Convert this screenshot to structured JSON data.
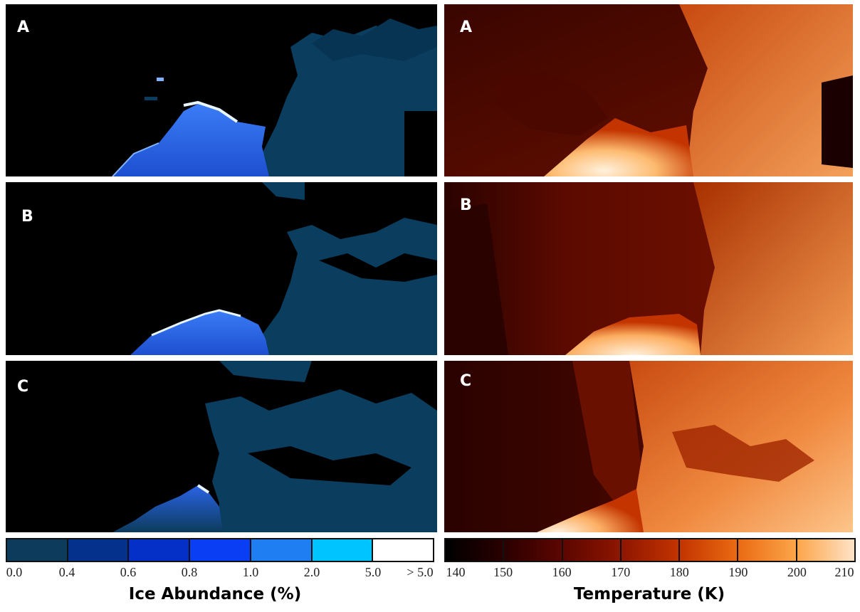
{
  "ice_panels": [
    {
      "label": "A"
    },
    {
      "label": "B"
    },
    {
      "label": "C"
    }
  ],
  "temp_panels": [
    {
      "label": "A"
    },
    {
      "label": "B"
    },
    {
      "label": "C"
    }
  ],
  "ice_colorbar": {
    "title": "Ice Abundance (%)",
    "ticks": [
      "0.0",
      "0.4",
      "0.6",
      "0.8",
      "1.0",
      "2.0",
      "5.0",
      "> 5.0"
    ],
    "colors": [
      "#0d3b5c",
      "#03318c",
      "#0430c8",
      "#0a3ef5",
      "#1f7ef2",
      "#00c4ff",
      "#ffffff"
    ]
  },
  "temp_colorbar": {
    "title": "Temperature (K)",
    "ticks": [
      "140",
      "150",
      "160",
      "170",
      "180",
      "190",
      "200",
      "210"
    ],
    "gradient": [
      "#000000",
      "#2a0000",
      "#5c0600",
      "#8e1600",
      "#c33400",
      "#ea6a12",
      "#fca54a",
      "#fee3c6"
    ]
  },
  "colors": {
    "ice_background": "#000000",
    "ice_terrain": "#0a3d5e",
    "ice_high": "#2f6df2",
    "ice_edge": "#e8f6ff",
    "temp_cold": "#1a0000",
    "temp_hot": "#fff1dd"
  }
}
